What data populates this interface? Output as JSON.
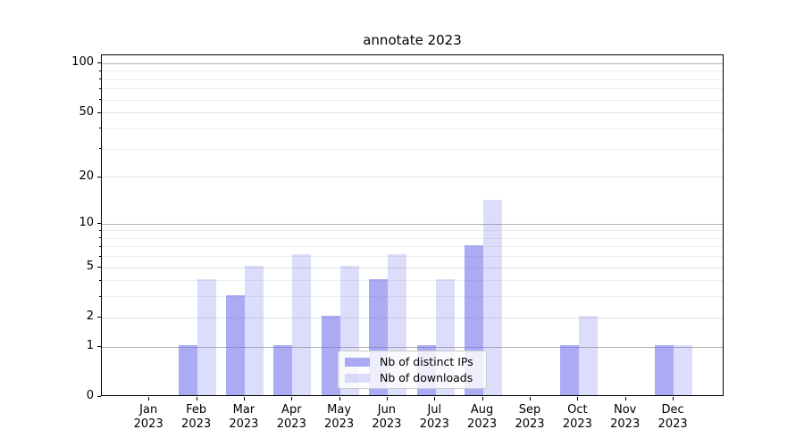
{
  "title": "annotate 2023",
  "colors": {
    "ips_bar": "rgba(119,119,238,0.62)",
    "downloads_bar": "rgba(119,119,238,0.26)",
    "grid_decade": "#b2b2b2",
    "grid_major": "#e2e2e2",
    "grid_minor": "#ececec",
    "spine": "#000000"
  },
  "y_axis": {
    "tick_labels": [
      "100",
      "50",
      "20",
      "10",
      "5",
      "2",
      "1",
      "0"
    ],
    "tick_values": [
      100,
      50,
      20,
      10,
      5,
      2,
      1,
      0
    ]
  },
  "x_axis": {
    "months": [
      "Jan",
      "Feb",
      "Mar",
      "Apr",
      "May",
      "Jun",
      "Jul",
      "Aug",
      "Sep",
      "Oct",
      "Nov",
      "Dec"
    ],
    "year": "2023"
  },
  "legend": {
    "items": [
      {
        "label": "Nb of distinct IPs",
        "color_key": "ips_bar"
      },
      {
        "label": "Nb of downloads",
        "color_key": "downloads_bar"
      }
    ]
  },
  "chart_data": {
    "type": "bar",
    "title": "annotate 2023",
    "categories": [
      "Jan 2023",
      "Feb 2023",
      "Mar 2023",
      "Apr 2023",
      "May 2023",
      "Jun 2023",
      "Jul 2023",
      "Aug 2023",
      "Sep 2023",
      "Oct 2023",
      "Nov 2023",
      "Dec 2023"
    ],
    "series": [
      {
        "name": "Nb of distinct IPs",
        "values": [
          0,
          1,
          3,
          1,
          2,
          4,
          1,
          7,
          0,
          1,
          0,
          1
        ]
      },
      {
        "name": "Nb of downloads",
        "values": [
          0,
          4,
          5,
          6,
          5,
          6,
          4,
          14,
          0,
          2,
          0,
          1
        ]
      }
    ],
    "xlabel": "",
    "ylabel": "",
    "yscale": "log1p",
    "ylim": [
      0,
      112
    ],
    "yticks": [
      0,
      1,
      2,
      5,
      10,
      20,
      50,
      100
    ],
    "minor_gridlines": [
      3,
      4,
      6,
      7,
      8,
      9,
      30,
      40,
      60,
      70,
      80,
      90
    ],
    "grid": true,
    "legend_position": "lower center"
  }
}
